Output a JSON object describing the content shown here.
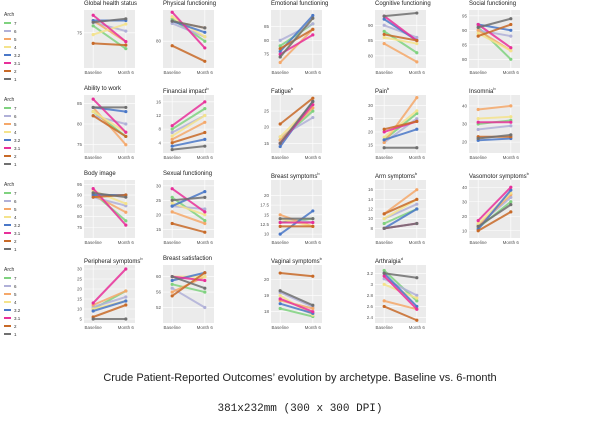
{
  "caption": "Crude Patient-Reported Outcomes’ evolution by archetype. Baseline vs. 6-month",
  "subcaption": "381x232mm (300 x 300 DPI)",
  "legend": {
    "title": "Arch",
    "entries": [
      "7",
      "6",
      "5",
      "4",
      "3.2",
      "3.1",
      "2",
      "1"
    ],
    "colors": [
      "#7fd27f",
      "#b0b0d8",
      "#f5a86a",
      "#f4e38c",
      "#4a78c8",
      "#e8309a",
      "#c86a28",
      "#707070"
    ]
  },
  "chart_data": [
    {
      "type": "line",
      "title": "Global health status",
      "sup": "",
      "categories": [
        "Baseline",
        "Month 6"
      ],
      "yticks": [
        75
      ],
      "ylim": [
        55,
        88
      ],
      "series": [
        {
          "values": [
            79,
            66
          ]
        },
        {
          "values": [
            81,
            76
          ]
        },
        {
          "values": [
            82,
            70
          ]
        },
        {
          "values": [
            74,
            80
          ]
        },
        {
          "values": [
            82,
            82
          ]
        },
        {
          "values": [
            85,
            70
          ]
        },
        {
          "values": [
            69,
            68
          ]
        },
        {
          "values": [
            81,
            83
          ]
        }
      ]
    },
    {
      "type": "line",
      "title": "Physical functioning",
      "sup": "",
      "categories": [
        "Baseline",
        "Month 6"
      ],
      "yticks": [
        80
      ],
      "ylim": [
        68,
        94
      ],
      "series": [
        {
          "values": [
            90,
            80
          ]
        },
        {
          "values": [
            88,
            82
          ]
        },
        {
          "values": [
            89,
            86
          ]
        },
        {
          "values": [
            91,
            82
          ]
        },
        {
          "values": [
            89,
            84
          ]
        },
        {
          "values": [
            93,
            77
          ]
        },
        {
          "values": [
            78,
            71
          ]
        },
        {
          "values": [
            89,
            86
          ]
        }
      ]
    },
    {
      "type": "line",
      "title": "Emotional functioning",
      "sup": "",
      "categories": [
        "Baseline",
        "Month 6"
      ],
      "yticks": [
        75,
        80,
        85
      ],
      "ylim": [
        70,
        91
      ],
      "series": [
        {
          "values": [
            78,
            86
          ]
        },
        {
          "values": [
            80,
            86
          ]
        },
        {
          "values": [
            72,
            84
          ]
        },
        {
          "values": [
            74,
            88
          ]
        },
        {
          "values": [
            76,
            89
          ]
        },
        {
          "values": [
            75,
            82
          ]
        },
        {
          "values": [
            77,
            84
          ]
        },
        {
          "values": [
            74,
            88
          ]
        }
      ]
    },
    {
      "type": "line",
      "title": "Cognitive functioning",
      "sup": "",
      "categories": [
        "Baseline",
        "Month 6"
      ],
      "yticks": [
        80,
        85,
        90
      ],
      "ylim": [
        76,
        95
      ],
      "series": [
        {
          "values": [
            88,
            81
          ]
        },
        {
          "values": [
            90,
            86
          ]
        },
        {
          "values": [
            84,
            78
          ]
        },
        {
          "values": [
            86,
            84
          ]
        },
        {
          "values": [
            92,
            85
          ]
        },
        {
          "values": [
            93,
            85
          ]
        },
        {
          "values": [
            87,
            85
          ]
        },
        {
          "values": [
            93,
            94
          ]
        }
      ]
    },
    {
      "type": "line",
      "title": "Social functioning",
      "sup": "",
      "categories": [
        "Baseline",
        "Month 6"
      ],
      "yticks": [
        80,
        85,
        90,
        95
      ],
      "ylim": [
        77,
        97
      ],
      "series": [
        {
          "values": [
            91,
            80
          ]
        },
        {
          "values": [
            90,
            88
          ]
        },
        {
          "values": [
            90,
            83
          ]
        },
        {
          "values": [
            89,
            83
          ]
        },
        {
          "values": [
            92,
            90
          ]
        },
        {
          "values": [
            92,
            84
          ]
        },
        {
          "values": [
            88,
            92
          ]
        },
        {
          "values": [
            91,
            94
          ]
        }
      ]
    },
    {
      "type": "line",
      "title": "Ability to work",
      "sup": "",
      "categories": [
        "Baseline",
        "Month 6"
      ],
      "yticks": [
        75,
        80,
        85
      ],
      "ylim": [
        73,
        87
      ],
      "series": [
        {
          "values": [
            83,
            77
          ]
        },
        {
          "values": [
            82,
            80
          ]
        },
        {
          "values": [
            84,
            75
          ]
        },
        {
          "values": [
            83,
            78
          ]
        },
        {
          "values": [
            84,
            83
          ]
        },
        {
          "values": [
            86,
            78
          ]
        },
        {
          "values": [
            82,
            77
          ]
        },
        {
          "values": [
            84,
            84
          ]
        }
      ]
    },
    {
      "type": "line",
      "title": "Financial impact",
      "sup": "b",
      "categories": [
        "Baseline",
        "Month 6"
      ],
      "yticks": [
        4,
        8,
        12,
        16
      ],
      "ylim": [
        1,
        18
      ],
      "series": [
        {
          "values": [
            8,
            14
          ]
        },
        {
          "values": [
            7,
            12
          ]
        },
        {
          "values": [
            5,
            10
          ]
        },
        {
          "values": [
            6,
            12
          ]
        },
        {
          "values": [
            3,
            5
          ]
        },
        {
          "values": [
            9,
            16
          ]
        },
        {
          "values": [
            4,
            7
          ]
        },
        {
          "values": [
            2,
            3
          ]
        }
      ]
    },
    {
      "type": "line",
      "title": "Fatigue",
      "sup": "b",
      "categories": [
        "Baseline",
        "Month 6"
      ],
      "yticks": [
        15,
        20,
        25
      ],
      "ylim": [
        12,
        30
      ],
      "series": [
        {
          "values": [
            16,
            25
          ]
        },
        {
          "values": [
            17,
            23
          ]
        },
        {
          "values": [
            16,
            26
          ]
        },
        {
          "values": [
            17,
            27
          ]
        },
        {
          "values": [
            14,
            28
          ]
        },
        {
          "values": [
            15,
            27
          ]
        },
        {
          "values": [
            21,
            29
          ]
        },
        {
          "values": [
            15,
            28
          ]
        }
      ]
    },
    {
      "type": "line",
      "title": "Pain",
      "sup": "b",
      "categories": [
        "Baseline",
        "Month 6"
      ],
      "yticks": [
        15,
        20,
        25,
        30
      ],
      "ylim": [
        12,
        34
      ],
      "series": [
        {
          "values": [
            17,
            27
          ]
        },
        {
          "values": [
            16,
            25
          ]
        },
        {
          "values": [
            16,
            33
          ]
        },
        {
          "values": [
            18,
            28
          ]
        },
        {
          "values": [
            17,
            21
          ]
        },
        {
          "values": [
            20,
            24
          ]
        },
        {
          "values": [
            21,
            24
          ]
        },
        {
          "values": [
            14,
            14
          ]
        }
      ]
    },
    {
      "type": "line",
      "title": "Insomnia",
      "sup": "b",
      "categories": [
        "Baseline",
        "Month 6"
      ],
      "yticks": [
        20,
        30,
        40
      ],
      "ylim": [
        14,
        46
      ],
      "series": [
        {
          "values": [
            30,
            32
          ]
        },
        {
          "values": [
            27,
            29
          ]
        },
        {
          "values": [
            38,
            40
          ]
        },
        {
          "values": [
            33,
            34
          ]
        },
        {
          "values": [
            21,
            22
          ]
        },
        {
          "values": [
            31,
            31
          ]
        },
        {
          "values": [
            23,
            23
          ]
        },
        {
          "values": [
            22,
            24
          ]
        }
      ]
    },
    {
      "type": "line",
      "title": "Body image",
      "sup": "",
      "categories": [
        "Baseline",
        "Month 6"
      ],
      "yticks": [
        75,
        80,
        85,
        90,
        95
      ],
      "ylim": [
        70,
        97
      ],
      "series": [
        {
          "values": [
            91,
            78
          ]
        },
        {
          "values": [
            89,
            85
          ]
        },
        {
          "values": [
            90,
            82
          ]
        },
        {
          "values": [
            92,
            86
          ]
        },
        {
          "values": [
            90,
            90
          ]
        },
        {
          "values": [
            93,
            76
          ]
        },
        {
          "values": [
            89,
            90
          ]
        },
        {
          "values": [
            91,
            89
          ]
        }
      ]
    },
    {
      "type": "line",
      "title": "Sexual functioning",
      "sup": "",
      "categories": [
        "Baseline",
        "Month 6"
      ],
      "yticks": [
        15,
        20,
        25,
        30
      ],
      "ylim": [
        12,
        32
      ],
      "series": [
        {
          "values": [
            26,
            18
          ]
        },
        {
          "values": [
            23,
            22
          ]
        },
        {
          "values": [
            21,
            17
          ]
        },
        {
          "values": [
            24,
            20
          ]
        },
        {
          "values": [
            23,
            28
          ]
        },
        {
          "values": [
            29,
            21
          ]
        },
        {
          "values": [
            17,
            14
          ]
        },
        {
          "values": [
            25,
            26
          ]
        }
      ]
    },
    {
      "type": "line",
      "title": "Breast symptoms",
      "sup": "b",
      "categories": [
        "Baseline",
        "Month 6"
      ],
      "yticks": [
        10,
        12.5,
        15,
        17.5,
        20
      ],
      "ylim": [
        9,
        24
      ],
      "series": [
        {
          "values": [
            13,
            14
          ]
        },
        {
          "values": [
            14,
            13
          ]
        },
        {
          "values": [
            15,
            12
          ]
        },
        {
          "values": [
            14,
            12
          ]
        },
        {
          "values": [
            10,
            16
          ]
        },
        {
          "values": [
            13,
            13
          ]
        },
        {
          "values": [
            12,
            12
          ]
        },
        {
          "values": [
            14,
            14
          ]
        }
      ]
    },
    {
      "type": "line",
      "title": "Arm symptoms",
      "sup": "b",
      "categories": [
        "Baseline",
        "Month 6"
      ],
      "yticks": [
        8,
        10,
        12,
        14,
        16
      ],
      "ylim": [
        6,
        18
      ],
      "series": [
        {
          "values": [
            9,
            12
          ]
        },
        {
          "values": [
            10,
            13
          ]
        },
        {
          "values": [
            11,
            16
          ]
        },
        {
          "values": [
            10,
            14
          ]
        },
        {
          "values": [
            8,
            12
          ]
        },
        {
          "values": [
            8,
            9
          ]
        },
        {
          "values": [
            11,
            14
          ]
        },
        {
          "values": [
            8,
            9
          ]
        }
      ]
    },
    {
      "type": "line",
      "title": "Vasomotor symptoms",
      "sup": "b",
      "categories": [
        "Baseline",
        "Month 6"
      ],
      "yticks": [
        10,
        20,
        30,
        40
      ],
      "ylim": [
        5,
        45
      ],
      "series": [
        {
          "values": [
            12,
            30
          ]
        },
        {
          "values": [
            14,
            33
          ]
        },
        {
          "values": [
            13,
            35
          ]
        },
        {
          "values": [
            15,
            36
          ]
        },
        {
          "values": [
            11,
            38
          ]
        },
        {
          "values": [
            17,
            40
          ]
        },
        {
          "values": [
            10,
            23
          ]
        },
        {
          "values": [
            13,
            28
          ]
        }
      ]
    },
    {
      "type": "line",
      "title": "Peripheral symptoms",
      "sup": "b",
      "categories": [
        "Baseline",
        "Month 6"
      ],
      "yticks": [
        5,
        10,
        15,
        20,
        25,
        30
      ],
      "ylim": [
        3,
        32
      ],
      "series": [
        {
          "values": [
            10,
            19
          ]
        },
        {
          "values": [
            11,
            16
          ]
        },
        {
          "values": [
            12,
            19
          ]
        },
        {
          "values": [
            10,
            14
          ]
        },
        {
          "values": [
            9,
            14
          ]
        },
        {
          "values": [
            13,
            30
          ]
        },
        {
          "values": [
            6,
            12
          ]
        },
        {
          "values": [
            5,
            5
          ]
        }
      ]
    },
    {
      "type": "line",
      "title": "Breast satisfaction",
      "sup": "",
      "categories": [
        "Baseline",
        "Month 6"
      ],
      "yticks": [
        52,
        56,
        60
      ],
      "ylim": [
        48,
        63
      ],
      "series": [
        {
          "values": [
            58,
            56
          ]
        },
        {
          "values": [
            57,
            52
          ]
        },
        {
          "values": [
            56,
            60
          ]
        },
        {
          "values": [
            60,
            60
          ]
        },
        {
          "values": [
            59,
            61
          ]
        },
        {
          "values": [
            60,
            59
          ]
        },
        {
          "values": [
            55,
            61
          ]
        },
        {
          "values": [
            60,
            57
          ]
        }
      ]
    },
    {
      "type": "line",
      "title": "Vaginal symptoms",
      "sup": "b",
      "categories": [
        "Baseline",
        "Month 6"
      ],
      "yticks": [
        18,
        19,
        20
      ],
      "ylim": [
        17.3,
        20.9
      ],
      "series": [
        {
          "values": [
            18.2,
            17.7
          ]
        },
        {
          "values": [
            19.2,
            18.3
          ]
        },
        {
          "values": [
            18.7,
            18.2
          ]
        },
        {
          "values": [
            19.0,
            17.8
          ]
        },
        {
          "values": [
            18.5,
            17.9
          ]
        },
        {
          "values": [
            18.8,
            18.0
          ]
        },
        {
          "values": [
            20.4,
            20.2
          ]
        },
        {
          "values": [
            19.3,
            18.4
          ]
        }
      ]
    },
    {
      "type": "line",
      "title": "Arthralgia",
      "sup": "d",
      "categories": [
        "Baseline",
        "Month 6"
      ],
      "yticks": [
        2.4,
        2.6,
        2.8,
        3.0,
        3.2
      ],
      "ylim": [
        2.3,
        3.35
      ],
      "series": [
        {
          "values": [
            3.25,
            2.7
          ]
        },
        {
          "values": [
            3.1,
            2.8
          ]
        },
        {
          "values": [
            2.7,
            2.55
          ]
        },
        {
          "values": [
            3.0,
            2.75
          ]
        },
        {
          "values": [
            3.2,
            2.6
          ]
        },
        {
          "values": [
            3.15,
            2.55
          ]
        },
        {
          "values": [
            2.6,
            2.35
          ]
        },
        {
          "values": [
            3.2,
            3.12
          ]
        }
      ]
    }
  ]
}
